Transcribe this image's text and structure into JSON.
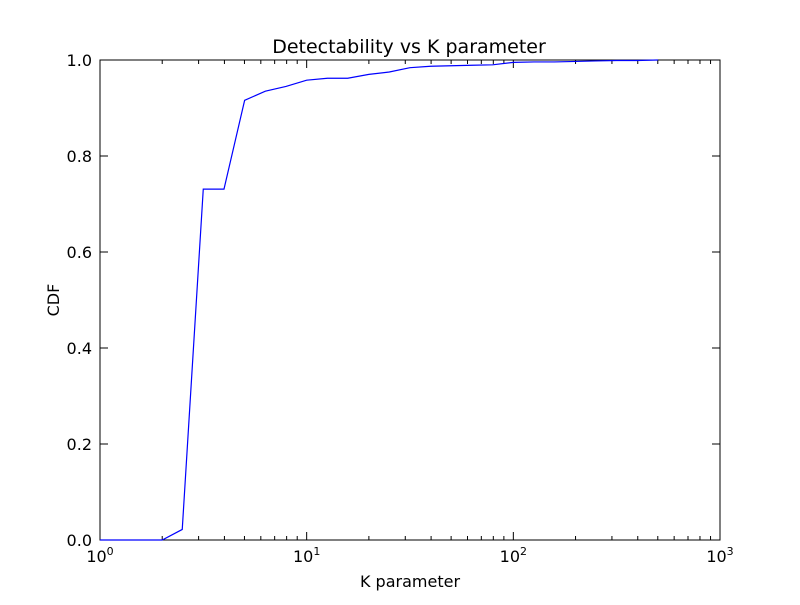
{
  "chart_data": {
    "type": "line",
    "title": "Detectability vs K parameter",
    "xlabel": "K parameter",
    "ylabel": "CDF",
    "xscale": "log",
    "xlim": [
      1,
      1000
    ],
    "ylim": [
      0.0,
      1.0
    ],
    "grid": false,
    "legend": "none",
    "x_ticks": [
      {
        "value": 1,
        "base": "10",
        "exp": "0"
      },
      {
        "value": 10,
        "base": "10",
        "exp": "1"
      },
      {
        "value": 100,
        "base": "10",
        "exp": "2"
      },
      {
        "value": 1000,
        "base": "10",
        "exp": "3"
      }
    ],
    "y_ticks": [
      {
        "value": 0.0,
        "label": "0.0"
      },
      {
        "value": 0.2,
        "label": "0.2"
      },
      {
        "value": 0.4,
        "label": "0.4"
      },
      {
        "value": 0.6,
        "label": "0.6"
      },
      {
        "value": 0.8,
        "label": "0.8"
      },
      {
        "value": 1.0,
        "label": "1.0"
      }
    ],
    "series": [
      {
        "color": "#0000ff",
        "x": [
          1,
          2,
          2.5,
          3.16,
          3.98,
          5.01,
          6.31,
          7.94,
          10,
          12.6,
          15.8,
          20,
          25.1,
          31.6,
          39.8,
          50.1,
          63.1,
          79.4,
          100,
          126,
          158,
          200,
          251,
          316,
          398,
          501
        ],
        "y": [
          0.0,
          0.0,
          0.022,
          0.731,
          0.731,
          0.916,
          0.935,
          0.945,
          0.958,
          0.962,
          0.962,
          0.97,
          0.975,
          0.984,
          0.987,
          0.988,
          0.989,
          0.99,
          0.995,
          0.996,
          0.996,
          0.997,
          0.998,
          0.999,
          0.999,
          1.0
        ]
      }
    ]
  }
}
